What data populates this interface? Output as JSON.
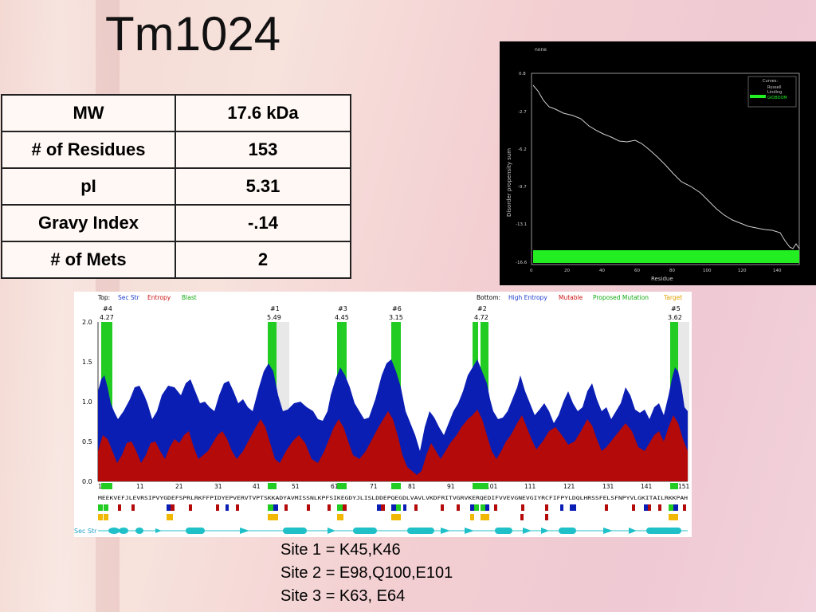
{
  "title": "Tm1024",
  "properties": [
    {
      "label": "MW",
      "value": "17.6 kDa"
    },
    {
      "label": "# of Residues",
      "value": "153"
    },
    {
      "label": "pI",
      "value": "5.31"
    },
    {
      "label": "Gravy Index",
      "value": "-.14"
    },
    {
      "label": "# of Mets",
      "value": "2"
    }
  ],
  "disorder_plot": {
    "header": "none",
    "legend_title": "Curves:",
    "legend_items": [
      "Russell",
      "Linding",
      "GlOBDOM"
    ],
    "xlabel": "Residue",
    "ylabel": "Disorder propensity sum",
    "x_ticks": [
      "0",
      "20",
      "40",
      "60",
      "80",
      "100",
      "120",
      "140"
    ],
    "y_ticks": [
      "0.8",
      "-2.7",
      "-6.2",
      "-9.7",
      "-13.1",
      "-16.6"
    ],
    "line_color": "#d0d0d0",
    "bar_color": "#22ee22"
  },
  "conservation": {
    "legend_top_label": "Top:",
    "legend_top": [
      {
        "text": "Sec Str",
        "color": "#1a3ccc"
      },
      {
        "text": "Entropy",
        "color": "#cc1111"
      },
      {
        "text": "Blast",
        "color": "#11aa11"
      }
    ],
    "legend_bottom_label": "Bottom:",
    "legend_bottom": [
      {
        "text": "High Entropy",
        "color": "#1a3ccc"
      },
      {
        "text": "Mutable",
        "color": "#cc1111"
      },
      {
        "text": "Proposed Mutation",
        "color": "#11aa11"
      },
      {
        "text": "Target",
        "color": "#e0a000"
      }
    ],
    "sites": [
      {
        "id": "#4",
        "score": "4.27"
      },
      {
        "id": "#1",
        "score": "5.49"
      },
      {
        "id": "#3",
        "score": "4.45"
      },
      {
        "id": "#6",
        "score": "3.15"
      },
      {
        "id": "#2",
        "score": "4.72"
      },
      {
        "id": "#5",
        "score": "3.62"
      }
    ],
    "y_ticks": [
      "2.0",
      "1.5",
      "1.0",
      "0.5",
      "0.0"
    ],
    "x_ticks": [
      "1",
      "11",
      "21",
      "31",
      "41",
      "51",
      "61",
      "71",
      "81",
      "91",
      "101",
      "111",
      "121",
      "131",
      "141",
      "151"
    ],
    "sequence": "MEEKVEFJLEVRSIPVYGDEFSPRLRKFFPIDYEPVERVTVPTSKKADYAVMISSNLKPFSIKEGDYJLISLDDEPQEGDLVAVLVKDFRITVGRVKERQEDIFVVEVGNEVGIYRCFIFPYLDQLHRSSFELSFNPYVLGKITAILRKKPAH",
    "sec_str_label": "Sec Str",
    "colors": {
      "high_entropy": "#0a1eb4",
      "mutable": "#b40a0a",
      "proposed": "#22cc22",
      "target": "#f0b800",
      "sec_str": "#20c0c8"
    }
  },
  "site_notes": [
    "Site 1 = K45,K46",
    "Site 2 = E98,Q100,E101",
    "Site 3 = K63, E64"
  ]
}
